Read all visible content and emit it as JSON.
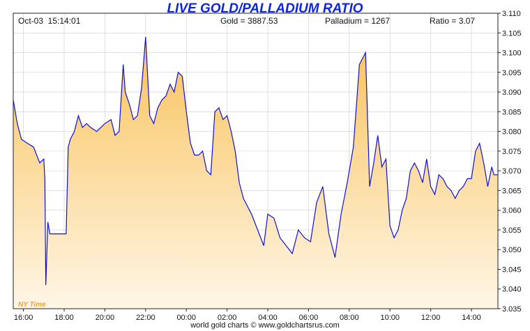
{
  "chart_data": {
    "type": "area",
    "title": "LIVE GOLD/PALLADIUM RATIO",
    "header": {
      "datetime": "Oct-03  15:14:01",
      "gold": "Gold = 3887.53",
      "palladium": "Palladium = 1267",
      "ratio": "Ratio = 3.07"
    },
    "timezone_label": "NY Time",
    "footer": "world gold charts © www.goldchartsrus.com",
    "x_tick_labels": [
      "16:00",
      "18:00",
      "20:00",
      "22:00",
      "00:00",
      "02:00",
      "04:00",
      "06:00",
      "08:00",
      "10:00",
      "12:00",
      "14:00"
    ],
    "x_range_hours": [
      15.5,
      39.3
    ],
    "y_tick_labels": [
      "3.035",
      "3.040",
      "3.045",
      "3.050",
      "3.055",
      "3.060",
      "3.065",
      "3.070",
      "3.075",
      "3.080",
      "3.085",
      "3.090",
      "3.095",
      "3.100",
      "3.105",
      "3.110"
    ],
    "ylim": [
      3.035,
      3.11
    ],
    "colors": {
      "line": "#1010d8",
      "fill_top": "#f8c35b",
      "fill_bottom": "#fff6e6",
      "grid": "#cdcdcd",
      "title": "#0b24e6",
      "tz": "#f2a31b"
    },
    "series": [
      {
        "name": "Gold/Palladium Ratio",
        "x_hours": [
          15.5,
          15.7,
          15.9,
          16.2,
          16.5,
          16.8,
          17.0,
          17.05,
          17.1,
          17.2,
          17.3,
          17.5,
          17.8,
          18.1,
          18.2,
          18.3,
          18.5,
          18.7,
          18.9,
          19.1,
          19.3,
          19.6,
          19.8,
          20.0,
          20.3,
          20.5,
          20.7,
          20.9,
          21.0,
          21.2,
          21.4,
          21.6,
          21.8,
          22.0,
          22.2,
          22.4,
          22.6,
          22.8,
          23.0,
          23.2,
          23.4,
          23.6,
          23.8,
          24.0,
          24.2,
          24.4,
          24.6,
          24.8,
          25.0,
          25.2,
          25.4,
          25.6,
          25.8,
          26.0,
          26.2,
          26.4,
          26.6,
          26.8,
          27.0,
          27.2,
          27.5,
          27.8,
          28.0,
          28.3,
          28.6,
          28.9,
          29.2,
          29.5,
          29.8,
          30.1,
          30.4,
          30.7,
          31.0,
          31.3,
          31.6,
          31.9,
          32.2,
          32.5,
          32.8,
          33.0,
          33.2,
          33.4,
          33.6,
          33.8,
          34.0,
          34.2,
          34.4,
          34.6,
          34.8,
          35.0,
          35.2,
          35.4,
          35.6,
          35.8,
          36.0,
          36.2,
          36.4,
          36.6,
          36.8,
          37.0,
          37.2,
          37.4,
          37.6,
          37.8,
          38.0,
          38.2,
          38.4,
          38.6,
          38.8,
          39.0,
          39.1,
          39.3
        ],
        "values": [
          3.088,
          3.082,
          3.078,
          3.077,
          3.076,
          3.072,
          3.073,
          3.068,
          3.041,
          3.057,
          3.054,
          3.054,
          3.054,
          3.054,
          3.076,
          3.078,
          3.08,
          3.084,
          3.081,
          3.082,
          3.081,
          3.08,
          3.081,
          3.082,
          3.083,
          3.079,
          3.08,
          3.097,
          3.09,
          3.087,
          3.083,
          3.084,
          3.091,
          3.104,
          3.084,
          3.082,
          3.086,
          3.088,
          3.089,
          3.092,
          3.09,
          3.095,
          3.094,
          3.085,
          3.077,
          3.074,
          3.074,
          3.075,
          3.07,
          3.069,
          3.085,
          3.086,
          3.083,
          3.084,
          3.08,
          3.075,
          3.067,
          3.063,
          3.061,
          3.059,
          3.055,
          3.051,
          3.059,
          3.058,
          3.053,
          3.051,
          3.049,
          3.055,
          3.053,
          3.052,
          3.062,
          3.066,
          3.054,
          3.048,
          3.059,
          3.067,
          3.076,
          3.097,
          3.1,
          3.066,
          3.072,
          3.079,
          3.071,
          3.073,
          3.056,
          3.053,
          3.055,
          3.06,
          3.063,
          3.07,
          3.072,
          3.07,
          3.067,
          3.073,
          3.066,
          3.064,
          3.069,
          3.068,
          3.066,
          3.065,
          3.063,
          3.065,
          3.066,
          3.068,
          3.068,
          3.075,
          3.077,
          3.072,
          3.066,
          3.071,
          3.069,
          3.069
        ]
      }
    ]
  }
}
